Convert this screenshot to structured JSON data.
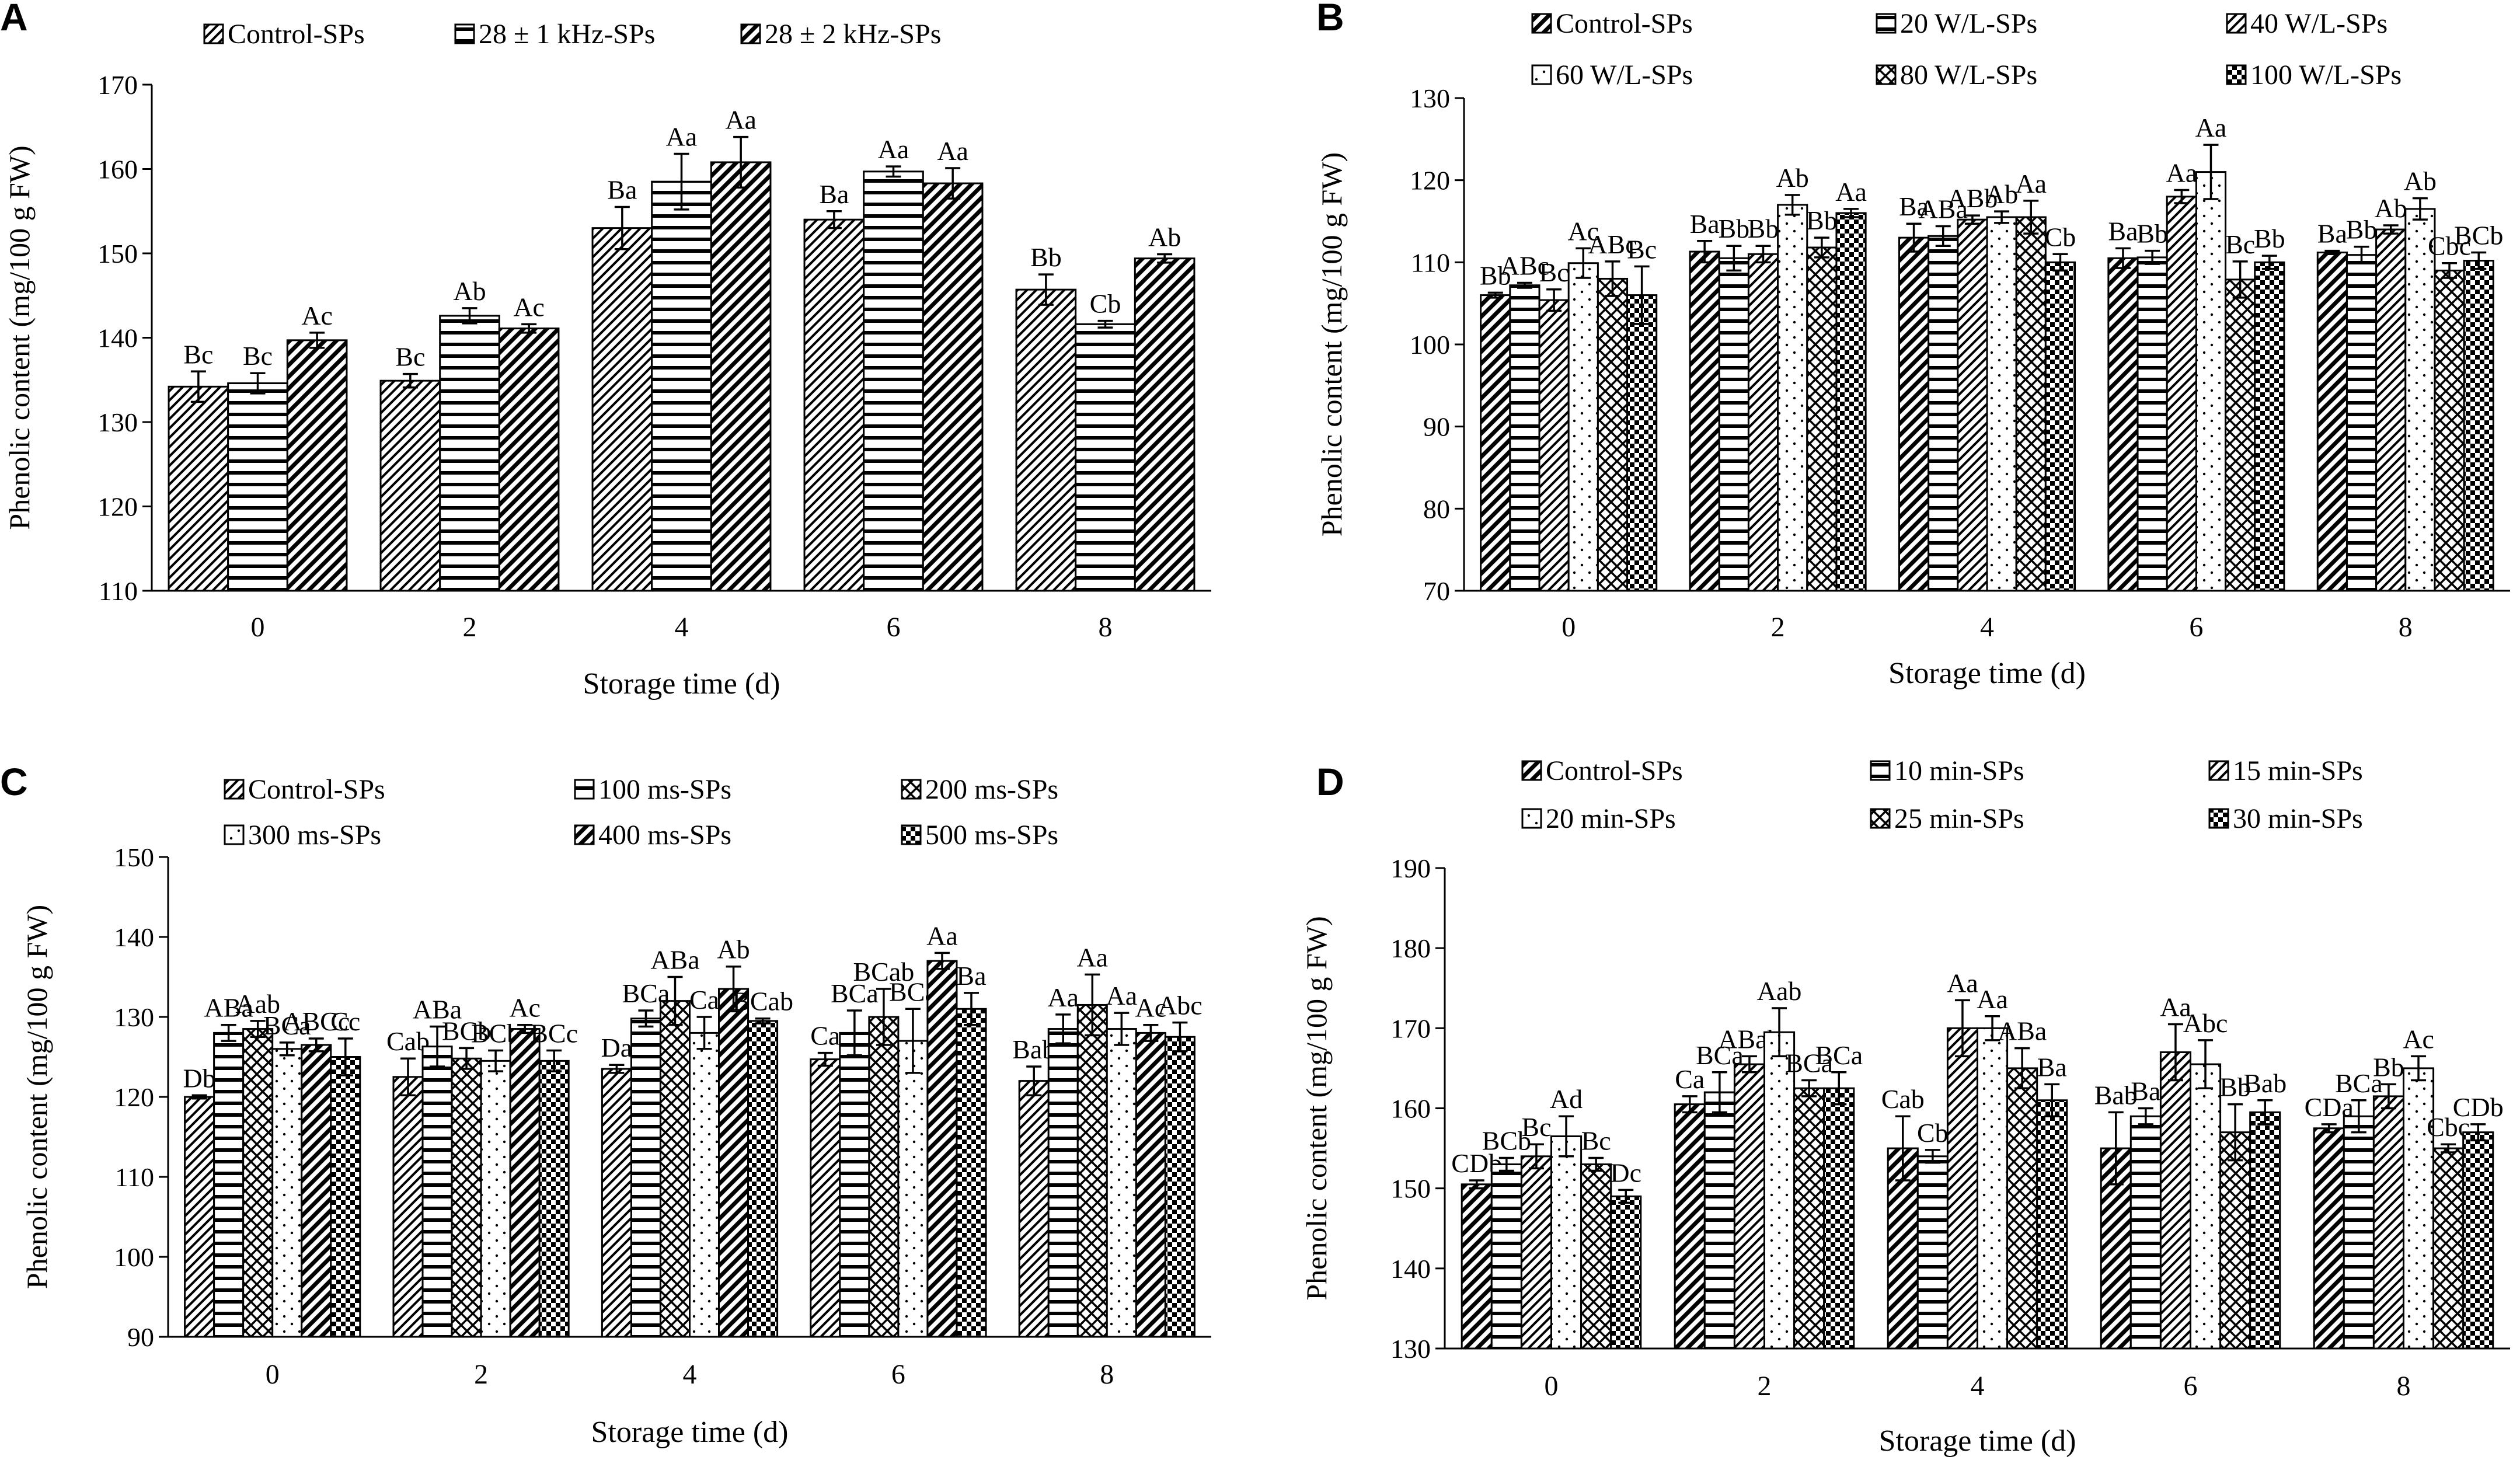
{
  "chart_data": [
    {
      "panel": "A",
      "type": "bar",
      "xlabel": "Storage time (d)",
      "ylabel": "Phenolic content (mg/100 g FW)",
      "ylim": [
        110,
        170
      ],
      "yticks": [
        110,
        120,
        130,
        140,
        150,
        160,
        170
      ],
      "categories": [
        "0",
        "2",
        "4",
        "6",
        "8"
      ],
      "series": [
        {
          "name": "Control-SPs",
          "pattern": "diag-fine",
          "values": [
            134.2,
            134.9,
            153.0,
            154.0,
            145.7
          ],
          "errors": [
            1.8,
            0.8,
            2.5,
            1.0,
            1.8
          ],
          "labels": [
            "Bc",
            "Bc",
            "Ba",
            "Ba",
            "Bb"
          ]
        },
        {
          "name": "28 ± 1 kHz-SPs",
          "pattern": "hlines",
          "values": [
            134.6,
            142.6,
            158.5,
            159.7,
            141.6
          ],
          "errors": [
            1.2,
            0.9,
            3.3,
            0.6,
            0.4
          ],
          "labels": [
            "Bc",
            "Ab",
            "Aa",
            "Aa",
            "Cb"
          ]
        },
        {
          "name": "28 ± 2 kHz-SPs",
          "pattern": "diag-bold",
          "values": [
            139.7,
            141.1,
            160.8,
            158.3,
            149.4
          ],
          "errors": [
            0.9,
            0.5,
            3.0,
            1.8,
            0.5
          ],
          "labels": [
            "Ac",
            "Ac",
            "Aa",
            "Aa",
            "Ab"
          ]
        }
      ]
    },
    {
      "panel": "B",
      "type": "bar",
      "xlabel": "Storage time (d)",
      "ylabel": "Phenolic content (mg/100 g FW)",
      "ylim": [
        70,
        130
      ],
      "yticks": [
        70,
        80,
        90,
        100,
        110,
        120,
        130
      ],
      "categories": [
        "0",
        "2",
        "4",
        "6",
        "8"
      ],
      "series": [
        {
          "name": "Control-SPs",
          "pattern": "diag-bold",
          "values": [
            106.0,
            111.3,
            113.0,
            110.5,
            111.2
          ],
          "errors": [
            0.3,
            1.3,
            1.7,
            1.2,
            0.2
          ],
          "labels": [
            "Bb",
            "Ba",
            "Ba",
            "Ba",
            "Ba"
          ]
        },
        {
          "name": "20 W/L-SPs",
          "pattern": "hlines",
          "values": [
            107.2,
            110.5,
            113.2,
            110.6,
            110.9
          ],
          "errors": [
            0.3,
            1.5,
            1.2,
            0.8,
            1.0
          ],
          "labels": [
            "ABc",
            "Bb",
            "ABa",
            "Bb",
            "Bb"
          ]
        },
        {
          "name": "40 W/L-SPs",
          "pattern": "diag-fine",
          "values": [
            105.4,
            111.0,
            115.2,
            118.0,
            114.0
          ],
          "errors": [
            1.3,
            1.0,
            0.5,
            0.8,
            0.5
          ],
          "labels": [
            "Bc",
            "Bb",
            "ABb",
            "Aa",
            "Ab"
          ]
        },
        {
          "name": "60 W/L-SPs",
          "pattern": "dots",
          "values": [
            109.9,
            117.0,
            115.5,
            121.0,
            116.5
          ],
          "errors": [
            1.8,
            1.2,
            0.7,
            3.3,
            1.3
          ],
          "labels": [
            "Ac",
            "Ab",
            "Ab",
            "Aa",
            "Ab"
          ]
        },
        {
          "name": "80 W/L-SPs",
          "pattern": "crosshatch",
          "values": [
            108.0,
            111.8,
            115.5,
            107.9,
            109.0
          ],
          "errors": [
            2.1,
            1.2,
            2.0,
            2.2,
            0.9
          ],
          "labels": [
            "ABc",
            "Bb",
            "Aa",
            "Bc",
            "Cbc"
          ]
        },
        {
          "name": "100 W/L-SPs",
          "pattern": "checker",
          "values": [
            106.0,
            116.0,
            110.0,
            110.0,
            110.2
          ],
          "errors": [
            3.5,
            0.5,
            1.0,
            0.8,
            1.0
          ],
          "labels": [
            "Bc",
            "Aa",
            "Cb",
            "Bb",
            "BCb"
          ]
        }
      ]
    },
    {
      "panel": "C",
      "type": "bar",
      "xlabel": "Storage time (d)",
      "ylabel": "Phenolic content (mg/100 g FW)",
      "ylim": [
        90,
        150
      ],
      "yticks": [
        90,
        100,
        110,
        120,
        130,
        140,
        150
      ],
      "categories": [
        "0",
        "2",
        "4",
        "6",
        "8"
      ],
      "series": [
        {
          "name": "Control-SPs",
          "pattern": "diag-fine",
          "values": [
            120.0,
            122.5,
            123.5,
            124.7,
            122.0
          ],
          "errors": [
            0.2,
            2.3,
            0.5,
            0.8,
            1.8
          ],
          "labels": [
            "Db",
            "Cab",
            "Da",
            "Ca",
            "Bab"
          ]
        },
        {
          "name": "100 ms-SPs",
          "pattern": "hlines",
          "values": [
            128.0,
            126.3,
            129.8,
            128.0,
            128.5
          ],
          "errors": [
            1.0,
            2.5,
            1.0,
            2.8,
            1.8
          ],
          "labels": [
            "ABa",
            "ABa",
            "BCa",
            "BCa",
            "Aa"
          ]
        },
        {
          "name": "200 ms-SPs",
          "pattern": "crosshatch",
          "values": [
            128.5,
            124.8,
            132.0,
            130.0,
            131.5
          ],
          "errors": [
            1.0,
            1.3,
            3.0,
            3.5,
            3.8
          ],
          "labels": [
            "Aab",
            "BCb",
            "ABa",
            "BCab",
            "Aa"
          ]
        },
        {
          "name": "300 ms-SPs",
          "pattern": "dots",
          "values": [
            126.0,
            124.5,
            128.0,
            127.0,
            128.5
          ],
          "errors": [
            0.8,
            1.3,
            2.0,
            4.0,
            2.0
          ],
          "labels": [
            "BCa",
            "BCb",
            "Ca",
            "BCa",
            "Aa"
          ]
        },
        {
          "name": "400 ms-SPs",
          "pattern": "diag-bold",
          "values": [
            126.5,
            128.5,
            133.5,
            137.0,
            128.0
          ],
          "errors": [
            0.8,
            0.5,
            2.8,
            1.0,
            1.0
          ],
          "labels": [
            "ABCc",
            "Ac",
            "Ab",
            "Aa",
            "Ac"
          ]
        },
        {
          "name": "500 ms-SPs",
          "pattern": "checker",
          "values": [
            125.0,
            124.5,
            129.5,
            131.0,
            127.5
          ],
          "errors": [
            2.3,
            1.3,
            0.3,
            2.0,
            1.8
          ],
          "labels": [
            "Cc",
            "BCc",
            "BCab",
            "Ba",
            "Abc"
          ]
        }
      ]
    },
    {
      "panel": "D",
      "type": "bar",
      "xlabel": "Storage time (d)",
      "ylabel": "Phenolic content (mg/100 g FW)",
      "ylim": [
        130,
        190
      ],
      "yticks": [
        130,
        140,
        150,
        160,
        170,
        180,
        190
      ],
      "categories": [
        "0",
        "2",
        "4",
        "6",
        "8"
      ],
      "series": [
        {
          "name": "Control-SPs",
          "pattern": "diag-bold",
          "values": [
            150.5,
            160.5,
            155.0,
            155.0,
            157.5
          ],
          "errors": [
            0.5,
            1.0,
            4.0,
            4.5,
            0.5
          ],
          "labels": [
            "CDb",
            "Ca",
            "Cab",
            "Bab",
            "CDa"
          ]
        },
        {
          "name": "10 min-SPs",
          "pattern": "hlines",
          "values": [
            153.0,
            162.0,
            154.0,
            159.0,
            159.0
          ],
          "errors": [
            0.8,
            2.5,
            0.8,
            1.0,
            2.0
          ],
          "labels": [
            "BCb",
            "BCa",
            "Cb",
            "Ba",
            "BCa"
          ]
        },
        {
          "name": "15 min-SPs",
          "pattern": "diag-fine",
          "values": [
            154.0,
            165.5,
            170.0,
            167.0,
            161.5
          ],
          "errors": [
            1.5,
            1.0,
            3.5,
            3.5,
            1.5
          ],
          "labels": [
            "Bc",
            "ABab",
            "Aa",
            "Aa",
            "Bb"
          ]
        },
        {
          "name": "20 min-SPs",
          "pattern": "dots",
          "values": [
            156.5,
            169.5,
            170.0,
            165.5,
            165.0
          ],
          "errors": [
            2.5,
            3.0,
            1.5,
            3.0,
            1.5
          ],
          "labels": [
            "Ad",
            "Aab",
            "Aa",
            "Abc",
            "Ac"
          ]
        },
        {
          "name": "25 min-SPs",
          "pattern": "crosshatch",
          "values": [
            153.0,
            162.5,
            165.0,
            157.0,
            155.0
          ],
          "errors": [
            0.8,
            1.0,
            2.5,
            3.5,
            0.5
          ],
          "labels": [
            "Bc",
            "BCa",
            "ABa",
            "Bb",
            "Cbc"
          ]
        },
        {
          "name": "30 min-SPs",
          "pattern": "checker",
          "values": [
            149.0,
            162.5,
            161.0,
            159.5,
            157.0
          ],
          "errors": [
            0.8,
            2.0,
            2.0,
            1.5,
            1.0
          ],
          "labels": [
            "Dc",
            "BCa",
            "Ba",
            "Bab",
            "CDb"
          ]
        }
      ]
    }
  ]
}
